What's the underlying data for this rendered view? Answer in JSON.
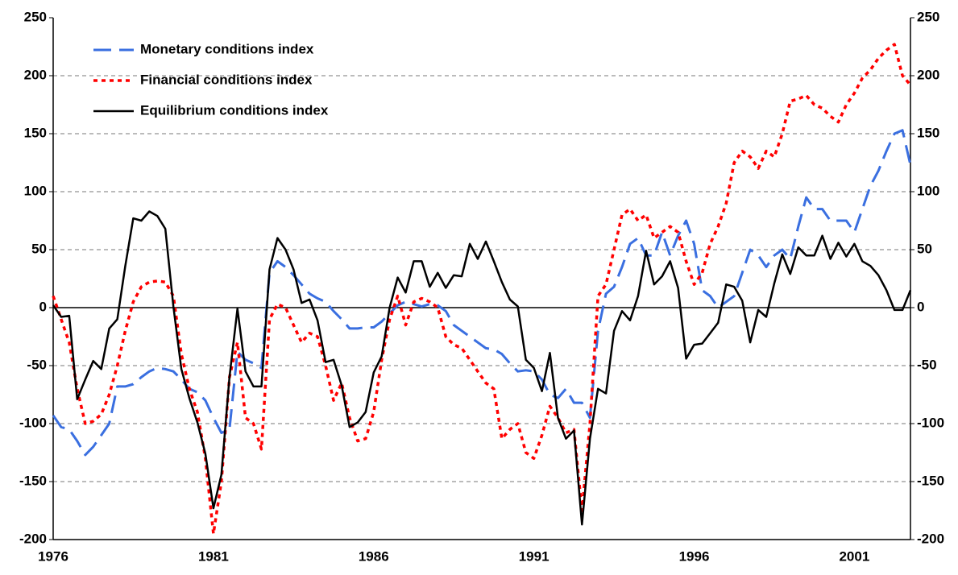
{
  "chart_data": {
    "type": "line",
    "categories": [
      "1976",
      null,
      null,
      null,
      null,
      null,
      null,
      null,
      null,
      null,
      null,
      null,
      null,
      null,
      null,
      null,
      null,
      null,
      null,
      null,
      "1981",
      null,
      null,
      null,
      null,
      null,
      null,
      null,
      null,
      null,
      null,
      null,
      null,
      null,
      null,
      null,
      null,
      null,
      null,
      null,
      "1986",
      null,
      null,
      null,
      null,
      null,
      null,
      null,
      null,
      null,
      null,
      null,
      null,
      null,
      null,
      null,
      null,
      null,
      null,
      null,
      "1991",
      null,
      null,
      null,
      null,
      null,
      null,
      null,
      null,
      null,
      null,
      null,
      null,
      null,
      null,
      null,
      null,
      null,
      null,
      null,
      "1996",
      null,
      null,
      null,
      null,
      null,
      null,
      null,
      null,
      null,
      null,
      null,
      null,
      null,
      null,
      null,
      null,
      null,
      null,
      null,
      "2001",
      null,
      null,
      null,
      null,
      null,
      null,
      null
    ],
    "series": [
      {
        "name": "Monetary conditions index",
        "color": "#3a6fe0",
        "dash": "dashed",
        "values": [
          -93,
          -103,
          -105,
          -115,
          -127,
          -120,
          -110,
          -100,
          -68,
          -68,
          -66,
          -60,
          -55,
          -52,
          -53,
          -55,
          -62,
          -70,
          -73,
          -80,
          -95,
          -108,
          -105,
          -38,
          -45,
          -48,
          -52,
          30,
          40,
          35,
          28,
          20,
          12,
          8,
          5,
          -3,
          -10,
          -18,
          -18,
          -17,
          -17,
          -12,
          -5,
          2,
          5,
          3,
          1,
          3,
          2,
          -3,
          -15,
          -20,
          -25,
          -30,
          -35,
          -36,
          -40,
          -48,
          -55,
          -54,
          -55,
          -62,
          -75,
          -78,
          -70,
          -82,
          -82,
          -95,
          -20,
          12,
          18,
          35,
          55,
          60,
          45,
          45,
          65,
          45,
          62,
          75,
          55,
          15,
          10,
          0,
          5,
          10,
          30,
          50,
          45,
          35,
          45,
          50,
          42,
          70,
          95,
          85,
          85,
          75,
          75,
          75,
          65,
          85,
          105,
          118,
          135,
          150,
          153,
          123
        ]
      },
      {
        "name": "Financial conditions index",
        "color": "#ff0000",
        "dash": "dotted",
        "values": [
          10,
          -10,
          -30,
          -70,
          -100,
          -98,
          -92,
          -75,
          -50,
          -20,
          5,
          18,
          22,
          23,
          22,
          10,
          -40,
          -70,
          -90,
          -130,
          -195,
          -150,
          -60,
          -30,
          -95,
          -100,
          -122,
          -10,
          3,
          0,
          -15,
          -30,
          -22,
          -25,
          -50,
          -80,
          -65,
          -95,
          -115,
          -113,
          -90,
          -45,
          -10,
          10,
          -15,
          5,
          8,
          5,
          0,
          -25,
          -32,
          -35,
          -45,
          -55,
          -65,
          -70,
          -113,
          -105,
          -100,
          -125,
          -130,
          -110,
          -85,
          -95,
          -108,
          -105,
          -175,
          -100,
          10,
          20,
          50,
          80,
          85,
          75,
          80,
          60,
          65,
          70,
          65,
          40,
          20,
          30,
          55,
          70,
          90,
          125,
          135,
          130,
          120,
          135,
          130,
          150,
          178,
          180,
          183,
          175,
          172,
          165,
          160,
          175,
          185,
          198,
          205,
          215,
          222,
          227,
          200,
          192
        ]
      },
      {
        "name": "Equilibrium conditions index",
        "color": "#000000",
        "dash": "solid",
        "values": [
          2,
          -8,
          -7,
          -79,
          -62,
          -46,
          -53,
          -18,
          -10,
          36,
          77,
          75,
          83,
          79,
          68,
          1,
          -53,
          -78,
          -99,
          -126,
          -173,
          -144,
          -60,
          -1,
          -55,
          -68,
          -68,
          33,
          60,
          50,
          33,
          4,
          7,
          -11,
          -47,
          -45,
          -67,
          -103,
          -99,
          -90,
          -56,
          -42,
          0,
          26,
          13,
          40,
          40,
          18,
          30,
          17,
          28,
          27,
          55,
          42,
          57,
          40,
          22,
          7,
          1,
          -45,
          -52,
          -72,
          -39,
          -95,
          -113,
          -106,
          -187,
          -113,
          -70,
          -74,
          -20,
          -3,
          -11,
          10,
          49,
          20,
          27,
          40,
          17,
          -44,
          -32,
          -31,
          -22,
          -13,
          20,
          18,
          6,
          -30,
          -2,
          -8,
          21,
          46,
          29,
          52,
          45,
          45,
          62,
          42,
          56,
          44,
          55,
          40,
          36,
          28,
          15,
          -2,
          -2,
          15
        ]
      }
    ],
    "ylim": [
      -200,
      250
    ],
    "yticks": [
      -200,
      -150,
      -100,
      -50,
      0,
      50,
      100,
      150,
      200,
      250
    ],
    "y2lim": [
      -200,
      250
    ],
    "y2ticks": [
      -200,
      -150,
      -100,
      -50,
      0,
      50,
      100,
      150,
      200,
      250
    ],
    "grid": true,
    "legend": "top-left"
  }
}
